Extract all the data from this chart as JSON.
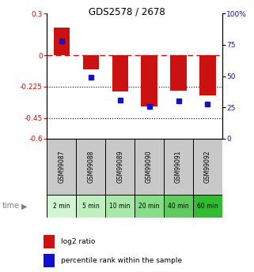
{
  "title": "GDS2578 / 2678",
  "samples": [
    "GSM99087",
    "GSM99088",
    "GSM99089",
    "GSM99090",
    "GSM99091",
    "GSM99092"
  ],
  "time_labels": [
    "2 min",
    "5 min",
    "10 min",
    "20 min",
    "40 min",
    "60 min"
  ],
  "time_colors": [
    "#d4f5d4",
    "#c0efc0",
    "#a8e8a8",
    "#88dd88",
    "#60cc60",
    "#33bb33"
  ],
  "log2_ratios": [
    0.2,
    -0.1,
    -0.26,
    -0.37,
    -0.255,
    -0.29
  ],
  "percentile_ranks": [
    78,
    49,
    31,
    26,
    30,
    28
  ],
  "ylim_left": [
    -0.6,
    0.3
  ],
  "ylim_right": [
    0,
    100
  ],
  "yticks_left": [
    0.3,
    0.0,
    -0.225,
    -0.45,
    -0.6
  ],
  "ytick_labels_left": [
    "0.3",
    "0",
    "-0.225",
    "-0.45",
    "-0.6"
  ],
  "yticks_right": [
    100,
    75,
    50,
    25,
    0
  ],
  "bar_color": "#CC1111",
  "dot_color": "#1111CC",
  "bg_color_gray": "#C8C8C8",
  "legend_label_bar": "log2 ratio",
  "legend_label_dot": "percentile rank within the sample"
}
